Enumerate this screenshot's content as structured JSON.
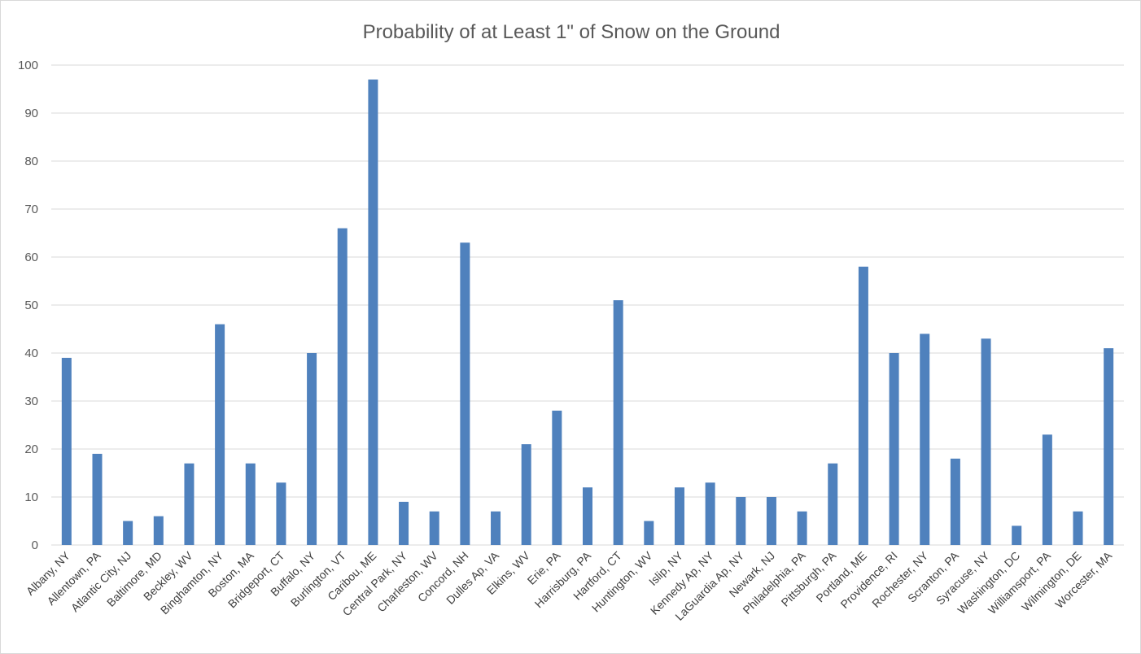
{
  "chart_data": {
    "type": "bar",
    "title": "Probability of at Least 1\" of Snow on the Ground",
    "xlabel": "",
    "ylabel": "",
    "ylim": [
      0,
      100
    ],
    "yticks": [
      0,
      10,
      20,
      30,
      40,
      50,
      60,
      70,
      80,
      90,
      100
    ],
    "grid": true,
    "legend": "none",
    "bar_color": "#4f81bd",
    "categories": [
      "Albany, NY",
      "Allentown, PA",
      "Atlantic City, NJ",
      "Baltimore, MD",
      "Beckley, WV",
      "Binghamton, NY",
      "Boston, MA",
      "Bridgeport, CT",
      "Buffalo, NY",
      "Burlington, VT",
      "Caribou, ME",
      "Central Park, NY",
      "Charleston, WV",
      "Concord, NH",
      "Dulles Ap, VA",
      "Elkins, WV",
      "Erie, PA",
      "Harrisburg, PA",
      "Hartford, CT",
      "Huntington, WV",
      "Islip, NY",
      "Kennedy Ap, NY",
      "LaGuardia Ap, NY",
      "Newark, NJ",
      "Philadelphia, PA",
      "Pittsburgh, PA",
      "Portland, ME",
      "Providence, RI",
      "Rochester, NY",
      "Scranton, PA",
      "Syracuse, NY",
      "Washington, DC",
      "Williamsport, PA",
      "Wilmington, DE",
      "Worcester, MA"
    ],
    "values": [
      39,
      19,
      5,
      6,
      17,
      46,
      17,
      13,
      40,
      66,
      97,
      9,
      7,
      63,
      7,
      21,
      28,
      12,
      51,
      5,
      12,
      13,
      10,
      10,
      7,
      17,
      58,
      40,
      44,
      18,
      43,
      4,
      23,
      7,
      41
    ]
  }
}
